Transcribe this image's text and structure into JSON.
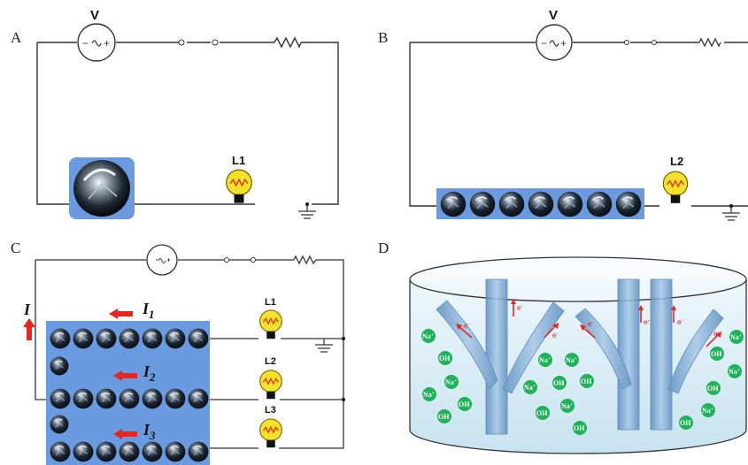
{
  "panels": {
    "A": {
      "label": "A",
      "voltmeter": "V",
      "lamp": "L1"
    },
    "B": {
      "label": "B",
      "voltmeter": "V",
      "lamp": "L2"
    },
    "C": {
      "label": "C",
      "total_current": "I",
      "currents": [
        {
          "symbol": "I",
          "subscript": "1",
          "lamp": "L1"
        },
        {
          "symbol": "I",
          "subscript": "2",
          "lamp": "L2"
        },
        {
          "symbol": "I",
          "subscript": "3",
          "lamp": "L3"
        }
      ]
    },
    "D": {
      "label": "D",
      "ions": {
        "na": "Na",
        "na_sup": "+",
        "oh": "OH"
      },
      "electron": {
        "symbol": "e",
        "sup": "-"
      }
    }
  },
  "colors": {
    "wire": "#333333",
    "sphere_bg": "#6a9be0",
    "arrow": "#e8261c",
    "ion": "#1fb25a",
    "bulb": "#f4e22a",
    "tube": "#8ab4dc"
  }
}
